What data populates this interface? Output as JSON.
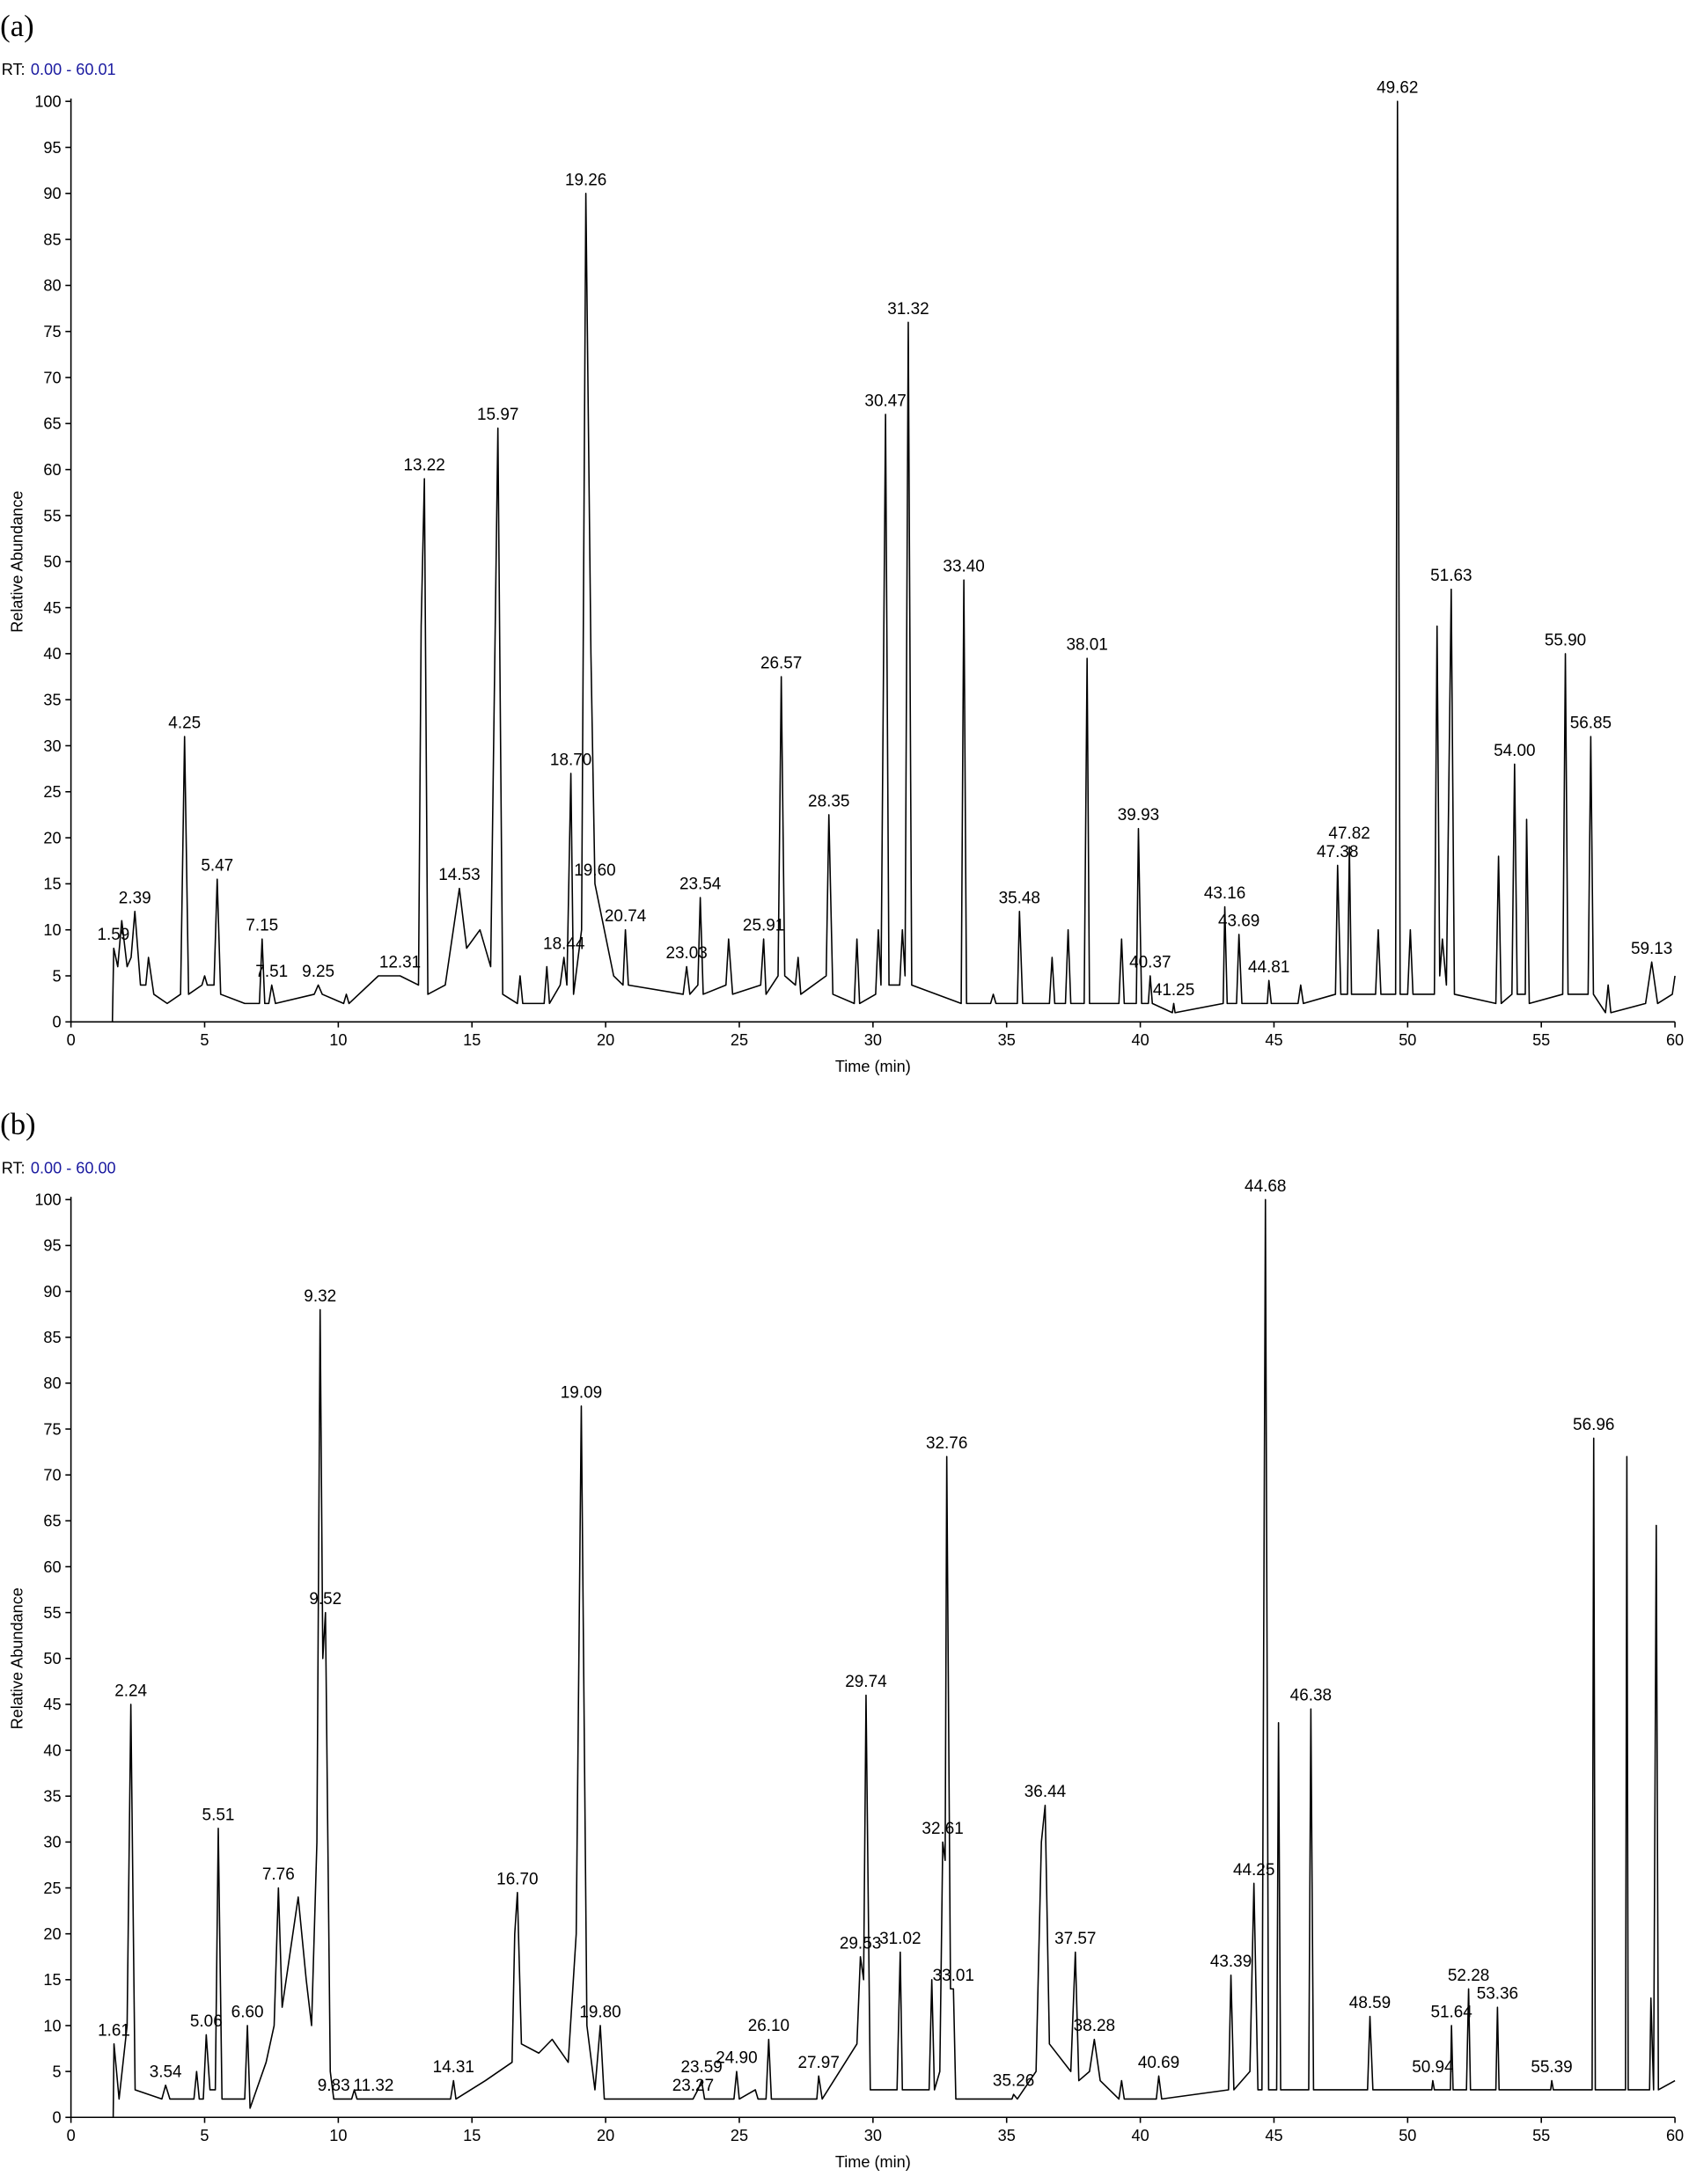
{
  "chart_data": [
    {
      "type": "line",
      "panel": "(a)",
      "rt_prefix": "RT:",
      "rt_range": "0.00 - 60.01",
      "x_label": "Time (min)",
      "y_label": "Relative Abundance",
      "color": "#000000",
      "xlim": [
        0,
        60
      ],
      "ylim": [
        0,
        100
      ],
      "xticks": [
        0,
        5,
        10,
        15,
        20,
        25,
        30,
        35,
        40,
        45,
        50,
        55,
        60
      ],
      "yticks": [
        0,
        5,
        10,
        15,
        20,
        25,
        30,
        35,
        40,
        45,
        50,
        55,
        60,
        65,
        70,
        75,
        80,
        85,
        90,
        95,
        100
      ],
      "x": [
        1.55,
        1.6,
        1.75,
        1.9,
        2.1,
        2.25,
        2.39,
        2.6,
        2.8,
        2.9,
        3.1,
        3.6,
        4.1,
        4.25,
        4.4,
        4.9,
        5.0,
        5.1,
        5.35,
        5.47,
        5.6,
        6.5,
        7.05,
        7.15,
        7.25,
        7.4,
        7.51,
        7.65,
        9.1,
        9.25,
        9.4,
        10.2,
        10.3,
        10.4,
        11.5,
        12.31,
        13.0,
        13.1,
        13.22,
        13.35,
        14.0,
        14.53,
        14.8,
        15.3,
        15.7,
        15.97,
        16.15,
        16.7,
        16.8,
        16.9,
        17.7,
        17.8,
        17.9,
        18.3,
        18.44,
        18.55,
        18.7,
        18.8,
        19.1,
        19.26,
        19.45,
        19.6,
        20.3,
        20.65,
        20.74,
        20.85,
        22.9,
        23.03,
        23.15,
        23.45,
        23.54,
        23.65,
        24.5,
        24.6,
        24.75,
        25.8,
        25.91,
        26.0,
        26.45,
        26.57,
        26.7,
        27.1,
        27.2,
        27.3,
        28.25,
        28.35,
        28.5,
        29.3,
        29.4,
        29.5,
        30.1,
        30.2,
        30.3,
        30.47,
        30.6,
        31.0,
        31.1,
        31.2,
        31.32,
        31.45,
        33.3,
        33.4,
        33.5,
        34.4,
        34.5,
        34.6,
        35.4,
        35.48,
        35.6,
        36.6,
        36.7,
        36.8,
        37.2,
        37.3,
        37.4,
        37.9,
        38.01,
        38.1,
        39.2,
        39.3,
        39.4,
        39.85,
        39.93,
        40.05,
        40.3,
        40.37,
        40.45,
        41.2,
        41.25,
        41.3,
        43.1,
        43.16,
        43.25,
        43.6,
        43.69,
        43.8,
        44.75,
        44.81,
        44.9,
        45.9,
        46.0,
        46.1,
        47.3,
        47.38,
        47.5,
        47.75,
        47.82,
        47.9,
        48.8,
        48.9,
        49.0,
        49.55,
        49.62,
        49.72,
        50.0,
        50.1,
        50.2,
        51.0,
        51.1,
        51.2,
        51.3,
        51.45,
        51.63,
        51.75,
        53.3,
        53.4,
        53.5,
        53.9,
        54.0,
        54.1,
        54.4,
        54.45,
        54.55,
        55.8,
        55.9,
        56.0,
        56.75,
        56.85,
        56.95,
        57.4,
        57.5,
        57.6,
        58.9,
        59.13,
        59.35,
        59.9,
        60.0
      ],
      "values": [
        0,
        8,
        6,
        11,
        6,
        7,
        12,
        4,
        4,
        7,
        3,
        2,
        3,
        31,
        3,
        4,
        5,
        4,
        4,
        15.5,
        3,
        2,
        2,
        9,
        2,
        2,
        4,
        2,
        3,
        4,
        3,
        2,
        3,
        2,
        5,
        5,
        4,
        43,
        59,
        3,
        4,
        14.5,
        8,
        10,
        6,
        64.5,
        3,
        2,
        5,
        2,
        2,
        6,
        2,
        4,
        7,
        4,
        27,
        3,
        10,
        90,
        40,
        15,
        5,
        4,
        10,
        4,
        3,
        6,
        3,
        4,
        13.5,
        3,
        4,
        9,
        3,
        4,
        9,
        3,
        5,
        37.5,
        5,
        4,
        7,
        3,
        5,
        22.5,
        3,
        2,
        9,
        2,
        3,
        10,
        4,
        66,
        4,
        4,
        10,
        5,
        76,
        4,
        2,
        48,
        2,
        2,
        3,
        2,
        2,
        12,
        2,
        2,
        7,
        2,
        2,
        10,
        2,
        2,
        39.5,
        2,
        2,
        9,
        2,
        2,
        21,
        2,
        2,
        5,
        2,
        1,
        2,
        1,
        2,
        12.5,
        2,
        2,
        9.5,
        2,
        2,
        4.5,
        2,
        2,
        4,
        2,
        3,
        17,
        3,
        3,
        19,
        3,
        3,
        10,
        3,
        3,
        100,
        3,
        3,
        10,
        3,
        3,
        43,
        5,
        9,
        4,
        47,
        3,
        2,
        18,
        2,
        3,
        28,
        3,
        3,
        22,
        2,
        3,
        40,
        3,
        3,
        31,
        3,
        1,
        4,
        1,
        2,
        6.5,
        2,
        3,
        5
      ],
      "annotations": [
        {
          "text": "1.59",
          "x": 1.59,
          "y": 8
        },
        {
          "text": "2.39",
          "x": 2.39,
          "y": 12
        },
        {
          "text": "4.25",
          "x": 4.25,
          "y": 31
        },
        {
          "text": "5.47",
          "x": 5.47,
          "y": 15.5
        },
        {
          "text": "7.15",
          "x": 7.15,
          "y": 9
        },
        {
          "text": "7.51",
          "x": 7.51,
          "y": 4
        },
        {
          "text": "9.25",
          "x": 9.25,
          "y": 4
        },
        {
          "text": "12.31",
          "x": 12.31,
          "y": 5
        },
        {
          "text": "13.22",
          "x": 13.22,
          "y": 59
        },
        {
          "text": "14.53",
          "x": 14.53,
          "y": 14.5
        },
        {
          "text": "15.97",
          "x": 15.97,
          "y": 64.5
        },
        {
          "text": "18.44",
          "x": 18.44,
          "y": 7
        },
        {
          "text": "18.70",
          "x": 18.7,
          "y": 27
        },
        {
          "text": "19.26",
          "x": 19.26,
          "y": 90
        },
        {
          "text": "19.60",
          "x": 19.6,
          "y": 15
        },
        {
          "text": "20.74",
          "x": 20.74,
          "y": 10
        },
        {
          "text": "23.03",
          "x": 23.03,
          "y": 6
        },
        {
          "text": "23.54",
          "x": 23.54,
          "y": 13.5
        },
        {
          "text": "25.91",
          "x": 25.91,
          "y": 9
        },
        {
          "text": "26.57",
          "x": 26.57,
          "y": 37.5
        },
        {
          "text": "28.35",
          "x": 28.35,
          "y": 22.5
        },
        {
          "text": "30.47",
          "x": 30.47,
          "y": 66
        },
        {
          "text": "31.32",
          "x": 31.32,
          "y": 76
        },
        {
          "text": "33.40",
          "x": 33.4,
          "y": 48
        },
        {
          "text": "35.48",
          "x": 35.48,
          "y": 12
        },
        {
          "text": "38.01",
          "x": 38.01,
          "y": 39.5
        },
        {
          "text": "39.93",
          "x": 39.93,
          "y": 21
        },
        {
          "text": "40.37",
          "x": 40.37,
          "y": 5
        },
        {
          "text": "41.25",
          "x": 41.25,
          "y": 2
        },
        {
          "text": "43.16",
          "x": 43.16,
          "y": 12.5
        },
        {
          "text": "43.69",
          "x": 43.69,
          "y": 9.5
        },
        {
          "text": "44.81",
          "x": 44.81,
          "y": 4.5
        },
        {
          "text": "47.38",
          "x": 47.38,
          "y": 17
        },
        {
          "text": "47.82",
          "x": 47.82,
          "y": 19
        },
        {
          "text": "49.62",
          "x": 49.62,
          "y": 100
        },
        {
          "text": "51.63",
          "x": 51.63,
          "y": 47
        },
        {
          "text": "54.00",
          "x": 54.0,
          "y": 28
        },
        {
          "text": "55.90",
          "x": 55.9,
          "y": 40
        },
        {
          "text": "56.85",
          "x": 56.85,
          "y": 31
        },
        {
          "text": "59.13",
          "x": 59.13,
          "y": 6.5
        }
      ]
    },
    {
      "type": "line",
      "panel": "(b)",
      "rt_prefix": "RT:",
      "rt_range": "0.00 - 60.00",
      "x_label": "Time (min)",
      "y_label": "Relative Abundance",
      "color": "#000000",
      "xlim": [
        0,
        60
      ],
      "ylim": [
        0,
        100
      ],
      "xticks": [
        0,
        5,
        10,
        15,
        20,
        25,
        30,
        35,
        40,
        45,
        50,
        55,
        60
      ],
      "yticks": [
        0,
        5,
        10,
        15,
        20,
        25,
        30,
        35,
        40,
        45,
        50,
        55,
        60,
        65,
        70,
        75,
        80,
        85,
        90,
        95,
        100
      ],
      "x": [
        1.58,
        1.61,
        1.8,
        2.1,
        2.24,
        2.4,
        3.4,
        3.54,
        3.7,
        4.6,
        4.7,
        4.8,
        4.95,
        5.06,
        5.2,
        5.4,
        5.51,
        5.65,
        6.5,
        6.6,
        6.7,
        7.3,
        7.6,
        7.76,
        7.9,
        8.2,
        8.5,
        8.8,
        9.0,
        9.2,
        9.32,
        9.42,
        9.52,
        9.7,
        9.83,
        10.5,
        10.6,
        10.7,
        11.32,
        13.0,
        14.2,
        14.31,
        14.4,
        15.5,
        16.5,
        16.6,
        16.7,
        16.85,
        17.5,
        18.0,
        18.6,
        18.9,
        19.09,
        19.3,
        19.6,
        19.8,
        19.95,
        23.27,
        23.45,
        23.59,
        23.7,
        24.8,
        24.9,
        25.0,
        25.6,
        25.7,
        26.0,
        26.1,
        26.2,
        27.9,
        27.97,
        28.1,
        29.4,
        29.53,
        29.65,
        29.74,
        29.9,
        30.9,
        31.02,
        31.1,
        32.1,
        32.2,
        32.3,
        32.5,
        32.61,
        32.7,
        32.76,
        32.9,
        33.01,
        33.1,
        35.2,
        35.26,
        35.4,
        36.1,
        36.3,
        36.44,
        36.6,
        37.4,
        37.57,
        37.7,
        38.1,
        38.28,
        38.5,
        39.2,
        39.3,
        39.4,
        40.6,
        40.69,
        40.8,
        43.3,
        43.39,
        43.5,
        44.1,
        44.25,
        44.4,
        44.55,
        44.68,
        44.8,
        45.1,
        45.17,
        45.25,
        46.3,
        46.38,
        46.48,
        48.5,
        48.59,
        48.7,
        50.9,
        50.94,
        51.0,
        51.6,
        51.64,
        51.7,
        52.2,
        52.28,
        52.35,
        53.3,
        53.36,
        53.42,
        55.35,
        55.39,
        55.45,
        56.9,
        56.96,
        57.02,
        58.15,
        58.2,
        58.25,
        59.05,
        59.1,
        59.2,
        59.3,
        59.38,
        60.0
      ],
      "values": [
        0,
        8,
        2,
        10,
        45,
        3,
        2,
        3.5,
        2,
        2,
        5,
        2,
        2,
        9,
        3,
        3,
        31.5,
        2,
        2,
        10,
        1,
        6,
        10,
        25,
        12,
        18,
        24,
        15,
        10,
        30,
        88,
        50,
        55,
        5,
        2,
        2,
        3,
        2,
        2,
        2,
        2,
        4,
        2,
        4,
        6,
        20,
        24.5,
        8,
        7,
        8.5,
        6,
        20,
        77.5,
        10,
        3,
        10,
        2,
        2,
        3,
        4,
        2,
        2,
        5,
        2,
        3,
        2,
        2,
        8.5,
        2,
        2,
        4.5,
        2,
        8,
        17.5,
        15,
        46,
        3,
        3,
        18,
        3,
        3,
        15,
        3,
        5,
        30,
        28,
        72,
        14,
        14,
        2,
        2,
        2.5,
        2,
        5,
        30,
        34,
        8,
        5,
        18,
        4,
        5,
        8.5,
        4,
        2,
        4,
        2,
        2,
        4.5,
        2,
        3,
        15.5,
        3,
        5,
        25.5,
        3,
        3,
        100,
        3,
        3,
        43,
        3,
        3,
        44.5,
        3,
        3,
        11,
        3,
        3,
        4,
        3,
        3,
        10,
        3,
        3,
        14,
        3,
        3,
        12,
        3,
        3,
        4,
        3,
        3,
        74,
        3,
        3,
        72,
        3,
        3,
        13,
        3,
        64.5,
        3,
        4
      ],
      "annotations": [
        {
          "text": "1.61",
          "x": 1.61,
          "y": 8
        },
        {
          "text": "2.24",
          "x": 2.24,
          "y": 45
        },
        {
          "text": "3.54",
          "x": 3.54,
          "y": 3.5
        },
        {
          "text": "5.06",
          "x": 5.06,
          "y": 9
        },
        {
          "text": "5.51",
          "x": 5.51,
          "y": 31.5
        },
        {
          "text": "6.60",
          "x": 6.6,
          "y": 10
        },
        {
          "text": "7.76",
          "x": 7.76,
          "y": 25
        },
        {
          "text": "9.32",
          "x": 9.32,
          "y": 88
        },
        {
          "text": "9.52",
          "x": 9.52,
          "y": 55
        },
        {
          "text": "9.83",
          "x": 9.83,
          "y": 2
        },
        {
          "text": "11.32",
          "x": 11.32,
          "y": 2
        },
        {
          "text": "14.31",
          "x": 14.31,
          "y": 4
        },
        {
          "text": "16.70",
          "x": 16.7,
          "y": 24.5
        },
        {
          "text": "19.09",
          "x": 19.09,
          "y": 77.5
        },
        {
          "text": "19.80",
          "x": 19.8,
          "y": 10
        },
        {
          "text": "23.27",
          "x": 23.27,
          "y": 2
        },
        {
          "text": "23.59",
          "x": 23.59,
          "y": 4
        },
        {
          "text": "24.90",
          "x": 24.9,
          "y": 5
        },
        {
          "text": "26.10",
          "x": 26.1,
          "y": 8.5
        },
        {
          "text": "27.97",
          "x": 27.97,
          "y": 4.5
        },
        {
          "text": "29.53",
          "x": 29.53,
          "y": 17.5
        },
        {
          "text": "29.74",
          "x": 29.74,
          "y": 46
        },
        {
          "text": "31.02",
          "x": 31.02,
          "y": 18
        },
        {
          "text": "32.61",
          "x": 32.61,
          "y": 30
        },
        {
          "text": "32.76",
          "x": 32.76,
          "y": 72
        },
        {
          "text": "33.01",
          "x": 33.01,
          "y": 14
        },
        {
          "text": "35.26",
          "x": 35.26,
          "y": 2.5
        },
        {
          "text": "36.44",
          "x": 36.44,
          "y": 34
        },
        {
          "text": "37.57",
          "x": 37.57,
          "y": 18
        },
        {
          "text": "38.28",
          "x": 38.28,
          "y": 8.5
        },
        {
          "text": "40.69",
          "x": 40.69,
          "y": 4.5
        },
        {
          "text": "43.39",
          "x": 43.39,
          "y": 15.5
        },
        {
          "text": "44.25",
          "x": 44.25,
          "y": 25.5
        },
        {
          "text": "44.68",
          "x": 44.68,
          "y": 100
        },
        {
          "text": "46.38",
          "x": 46.38,
          "y": 44.5
        },
        {
          "text": "48.59",
          "x": 48.59,
          "y": 11
        },
        {
          "text": "50.94",
          "x": 50.94,
          "y": 4
        },
        {
          "text": "51.64",
          "x": 51.64,
          "y": 10
        },
        {
          "text": "52.28",
          "x": 52.28,
          "y": 14
        },
        {
          "text": "53.36",
          "x": 53.36,
          "y": 12
        },
        {
          "text": "55.39",
          "x": 55.39,
          "y": 4
        },
        {
          "text": "56.96",
          "x": 56.96,
          "y": 74
        }
      ]
    }
  ]
}
